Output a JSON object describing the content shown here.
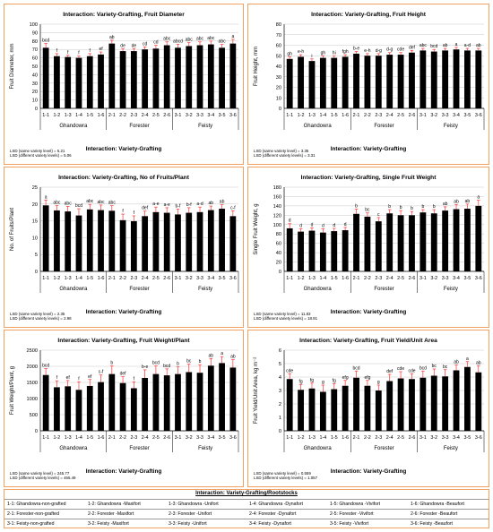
{
  "common": {
    "xlabels": [
      "1-1",
      "1-2",
      "1-3",
      "1-4",
      "1-5",
      "1-6",
      "2-1",
      "2-2",
      "2-3",
      "2-4",
      "2-5",
      "2-6",
      "3-1",
      "3-2",
      "3-3",
      "3-4",
      "3-5",
      "3-6"
    ],
    "groups": [
      "Ghandowra",
      "Forester",
      "Feisty"
    ]
  },
  "chart_data": [
    {
      "type": "bar",
      "title": "Interaction: Variety-Grafting, Fruit Diameter",
      "xlabel": "Interaction: Variety-Grafting",
      "ylabel": "Fruit Diameter, mm",
      "ylim": [
        0,
        100
      ],
      "ytick_step": 10,
      "values": [
        72,
        62,
        61,
        60,
        62,
        64,
        77,
        68,
        68,
        70,
        71,
        75,
        72,
        74,
        75,
        76,
        72,
        77
      ],
      "errors": [
        5,
        3,
        2,
        2,
        3,
        3,
        4,
        3,
        3,
        3,
        4,
        4,
        4,
        4,
        4,
        4,
        4,
        5
      ],
      "letters": [
        "bcd",
        "f",
        "f",
        "f",
        "f",
        "ef",
        "ab",
        "de",
        "de",
        "cd",
        "cd",
        "abc",
        "abcd",
        "abc",
        "abc",
        "abc",
        "abc",
        "a"
      ],
      "lsd": [
        "LSD (same variety level) = 5.21",
        "LSD (different variety levels) = 5.06"
      ]
    },
    {
      "type": "bar",
      "title": "Interaction: Variety-Grafting, Fruit Height",
      "xlabel": "Interaction: Variety-Grafting",
      "ylabel": "Fruit Height, mm",
      "ylim": [
        0,
        80
      ],
      "ytick_step": 10,
      "values": [
        47,
        49,
        45,
        48,
        48,
        49,
        52,
        50,
        50,
        51,
        51,
        53,
        55,
        54,
        55,
        56,
        55,
        55
      ],
      "errors": [
        2,
        2,
        2,
        2,
        2,
        2,
        2,
        2,
        2,
        2,
        2,
        2,
        2,
        2,
        2,
        2,
        2,
        2
      ],
      "letters": [
        "gh",
        "e-h",
        "i",
        "gh",
        "hi",
        "fgh",
        "b-e",
        "e-h",
        "d-g",
        "d-g",
        "cde",
        "def",
        "abc",
        "bcd",
        "ab",
        "a",
        "a-d",
        "ab"
      ],
      "lsd": [
        "LSD (same variety level) = 3.35",
        "LSD (different variety levels) = 3.31"
      ]
    },
    {
      "type": "bar",
      "title": "Interaction: Variety-Grafting, No of Fruits/Plant",
      "xlabel": "Interaction: Variety-Grafting",
      "ylabel": "No. of Fruits/Plant",
      "ylim": [
        0,
        25
      ],
      "ytick_step": 5,
      "values": [
        19.6,
        18.1,
        17.8,
        16.6,
        18.4,
        18.2,
        18.0,
        15.2,
        14.9,
        16.4,
        17.6,
        17.4,
        16.9,
        17.4,
        17.6,
        18.2,
        18.6,
        16.4
      ],
      "errors": [
        1.6,
        1.4,
        1.5,
        2.0,
        1.5,
        1.5,
        1.5,
        1.8,
        1.6,
        1.5,
        1.5,
        1.5,
        1.6,
        1.5,
        1.5,
        1.2,
        1.2,
        1.6
      ],
      "letters": [
        "a",
        "abc",
        "abc",
        "bcd",
        "abc",
        "abc",
        "abc",
        "f",
        "f",
        "def",
        "a-e",
        "a-e",
        "b-f",
        "b-f",
        "a-d",
        "ab",
        "ab",
        "c-f"
      ],
      "lsd": [
        "LSD (same variety level) = 2.35",
        "LSD (different variety levels) = 2.98"
      ]
    },
    {
      "type": "bar",
      "title": "Interaction: Variety-Grafting, Single Fruit Weight",
      "xlabel": "Interaction: Variety-Grafting",
      "ylabel": "Single Fruit Weight, g",
      "ylim": [
        0,
        180
      ],
      "ytick_step": 20,
      "values": [
        92,
        85,
        87,
        83,
        86,
        88,
        123,
        117,
        107,
        124,
        120,
        120,
        126,
        124,
        130,
        133,
        134,
        140
      ],
      "errors": [
        10,
        6,
        6,
        8,
        6,
        6,
        10,
        8,
        8,
        8,
        10,
        8,
        6,
        8,
        8,
        10,
        10,
        12
      ],
      "letters": [
        "d",
        "d",
        "d",
        "d",
        "d",
        "d",
        "b",
        "bc",
        "c",
        "b",
        "b",
        "b",
        "b",
        "b",
        "ab",
        "ab",
        "ab",
        "a"
      ],
      "lsd": [
        "LSD (same variety level) = 11.83",
        "LSD (different variety levels) = 18.91"
      ]
    },
    {
      "type": "bar",
      "title": "Interaction: Variety-Grafting, Fruit Weight/Plant",
      "xlabel": "Interaction: Variety-Grafting",
      "ylabel": "Fruit Weight/Plant, g",
      "ylim": [
        0,
        2500
      ],
      "ytick_step": 500,
      "values": [
        1730,
        1350,
        1380,
        1270,
        1390,
        1510,
        1760,
        1480,
        1320,
        1640,
        1760,
        1720,
        1760,
        1820,
        1800,
        2020,
        2100,
        1960
      ],
      "errors": [
        200,
        200,
        180,
        250,
        200,
        220,
        250,
        200,
        200,
        250,
        250,
        200,
        220,
        250,
        250,
        220,
        200,
        250
      ],
      "letters": [
        "bcd",
        "f",
        "ef",
        "f",
        "ef",
        "c-f",
        "b",
        "def",
        "f",
        "b-e",
        "bcd",
        "bcd",
        "b",
        "bc",
        "b",
        "ab",
        "a",
        "ab"
      ],
      "lsd": [
        "LSD (same variety level) = 245.77",
        "LSD (different variety levels) = 465.49"
      ]
    },
    {
      "type": "bar",
      "title": "Interaction: Variety-Grafting, Fruit Yield/Unit Area",
      "xlabel": "Interaction: Variety-Grafting",
      "ylabel": "Fruit Yield/Unit Area, kg m⁻²",
      "ylim": [
        0,
        6
      ],
      "ytick_step": 1,
      "values": [
        3.85,
        3.05,
        3.15,
        2.9,
        3.1,
        3.35,
        3.95,
        3.35,
        3.0,
        3.7,
        3.9,
        3.85,
        3.95,
        4.1,
        4.05,
        4.5,
        4.75,
        4.35
      ],
      "errors": [
        0.4,
        0.4,
        0.4,
        0.5,
        0.4,
        0.4,
        0.5,
        0.4,
        0.4,
        0.5,
        0.5,
        0.4,
        0.5,
        0.5,
        0.5,
        0.4,
        0.4,
        0.5
      ],
      "letters": [
        "cde",
        "fg",
        "fg",
        "g",
        "fg",
        "efg",
        "bcd",
        "efg",
        "g",
        "def",
        "cde",
        "cde",
        "bcd",
        "bc",
        "bc",
        "ab",
        "a",
        "ab"
      ],
      "lsd": [
        "LSD (same variety level) = 0.559",
        "LSD (different variety levels) = 1.057"
      ]
    }
  ],
  "legend": {
    "title": "Interaction: Variety-Grafting/Rootstocks",
    "rows": [
      [
        "1-1: Ghandowra-non-grafted",
        "1-2: Ghandowra -Maxifort",
        "1-3: Ghandowra -Unifort",
        "1-4: Ghandowra -Dynafort",
        "1-5: Ghandowra -Vivifort",
        "1-6: Ghandowra -Beaufort"
      ],
      [
        "2-1: Forester-non-grafted",
        "2-2: Forester -Maxifort",
        "2-3: Forester -Unifort",
        "2-4: Forester -Dynafort",
        "2-5: Forester -Vivifort",
        "2-6: Forester -Beaufort"
      ],
      [
        "3-1: Feisty-non-grafted",
        "3-2: Feisty -Maxifort",
        "3-3: Feisty -Unifort",
        "3-4: Feisty -Dynafort",
        "3-5: Feisty -Vivifort",
        "3-6: Feisty -Beaufort"
      ]
    ]
  },
  "colors": {
    "bar": "#000000",
    "error": "#ff3333",
    "border": "#f0a060",
    "grid": "#c8c8c8"
  }
}
